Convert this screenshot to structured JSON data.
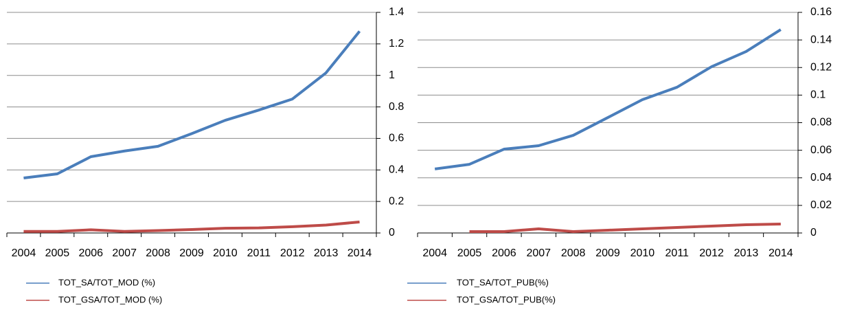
{
  "chart_data": [
    {
      "type": "line",
      "categories": [
        "2004",
        "2005",
        "2006",
        "2007",
        "2008",
        "2009",
        "2010",
        "2011",
        "2012",
        "2013",
        "2014"
      ],
      "series": [
        {
          "name": "TOT_SA/TOT_MOD (%)",
          "color": "#4a7ebb",
          "values": [
            0.349,
            0.375,
            0.484,
            0.52,
            0.55,
            0.63,
            0.715,
            0.78,
            0.85,
            1.016,
            1.28
          ]
        },
        {
          "name": "TOT_GSA/TOT_MOD (%)",
          "color": "#be4b48",
          "values": [
            0.01,
            0.01,
            0.02,
            0.01,
            0.015,
            0.022,
            0.03,
            0.032,
            0.04,
            0.05,
            0.07
          ]
        }
      ],
      "ylim": [
        0,
        1.4
      ],
      "yticks": [
        0,
        0.2,
        0.4,
        0.6,
        0.8,
        1,
        1.2,
        1.4
      ],
      "grid": true,
      "y_axis_side": "right",
      "legend": "bottom"
    },
    {
      "type": "line",
      "categories": [
        "2004",
        "2005",
        "2006",
        "2007",
        "2008",
        "2009",
        "2010",
        "2011",
        "2012",
        "2013",
        "2014"
      ],
      "series": [
        {
          "name": "TOT_SA/TOT_PUB(%)",
          "color": "#4a7ebb",
          "values": [
            0.0464,
            0.0498,
            0.0608,
            0.0633,
            0.0708,
            0.0837,
            0.0967,
            0.1057,
            0.1206,
            0.1316,
            0.1475
          ]
        },
        {
          "name": "TOT_GSA/TOT_PUB(%)",
          "color": "#be4b48",
          "values": [
            null,
            0.001,
            0.001,
            0.003,
            0.001,
            0.002,
            0.003,
            0.004,
            0.005,
            0.006,
            0.0065
          ]
        }
      ],
      "ylim": [
        0,
        0.16
      ],
      "yticks": [
        0,
        0.02,
        0.04,
        0.06,
        0.08,
        0.1,
        0.12,
        0.14,
        0.16
      ],
      "grid": true,
      "y_axis_side": "right",
      "legend": "bottom"
    }
  ]
}
